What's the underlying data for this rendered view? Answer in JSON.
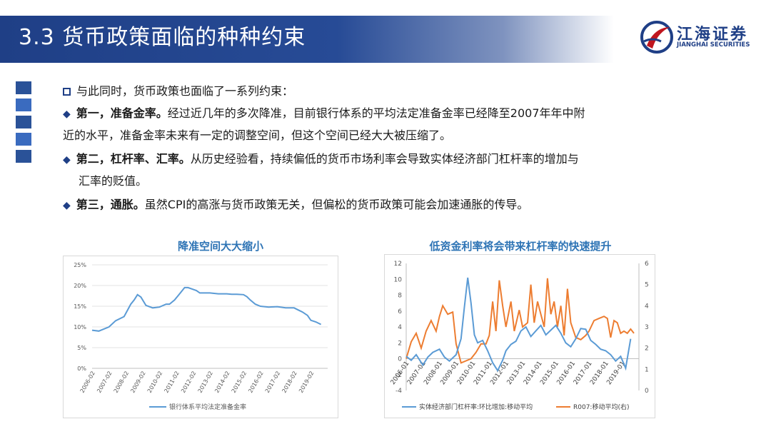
{
  "page": {
    "title": "3.3 货币政策面临的种种约束"
  },
  "logo": {
    "name_cn": "江海证券",
    "name_en": "JIANGHAI SECURITIES"
  },
  "content": {
    "intro": "与此同时，货币政策也面临了一系列约束：",
    "items": [
      {
        "lead": "第一，准备金率。",
        "line1": "经过近几年的多次降准，目前银行体系的平均法定准备金率已经降至2007年年中附",
        "line2": "近的水平，准备金率未来有一定的调整空间，但这个空间已经大大被压缩了。"
      },
      {
        "lead": "第二，杠杆率、汇率。",
        "line1": "从历史经验看，持续偏低的货币市场利率会导致实体经济部门杠杆率的增加与",
        "line2": "汇率的贬值。"
      },
      {
        "lead": "第三，通胀。",
        "line1": "虽然CPI的高涨与货币政策无关，但偏松的货币政策可能会加速通胀的传导。"
      }
    ]
  },
  "chart_data": [
    {
      "type": "line",
      "title": "降准空间大大缩小",
      "ylim": [
        0,
        25
      ],
      "y_ticks": [
        "0%",
        "5%",
        "10%",
        "15%",
        "20%",
        "25%"
      ],
      "x_ticks": [
        "2006-02",
        "2007-02",
        "2008-02",
        "2009-02",
        "2010-02",
        "2011-02",
        "2012-02",
        "2013-02",
        "2014-02",
        "2015-02",
        "2016-02",
        "2017-02",
        "2018-02",
        "2019-02"
      ],
      "grid": true,
      "legend": "bottom",
      "series": [
        {
          "name": "银行体系平均法定准备金率",
          "color": "#5b9bd5",
          "x": [
            2006.0,
            2006.4,
            2007.0,
            2007.4,
            2007.9,
            2008.3,
            2008.5,
            2008.7,
            2008.9,
            2009.2,
            2009.6,
            2010.0,
            2010.4,
            2010.6,
            2010.9,
            2011.2,
            2011.5,
            2011.7,
            2011.9,
            2012.2,
            2012.4,
            2013.0,
            2013.5,
            2014.0,
            2014.3,
            2014.6,
            2015.0,
            2015.2,
            2015.4,
            2015.7,
            2016.0,
            2016.5,
            2017.0,
            2017.5,
            2018.0,
            2018.3,
            2018.5,
            2018.8,
            2019.0,
            2019.3,
            2019.6
          ],
          "values": [
            9.2,
            9.0,
            10.0,
            11.5,
            12.5,
            15.5,
            16.5,
            17.8,
            17.2,
            15.2,
            14.6,
            14.8,
            15.5,
            15.5,
            16.5,
            18.0,
            19.5,
            19.5,
            19.2,
            18.8,
            18.2,
            18.2,
            18.0,
            18.0,
            17.9,
            17.9,
            17.8,
            17.3,
            16.5,
            15.5,
            15.0,
            14.8,
            14.9,
            14.6,
            14.6,
            14.0,
            13.6,
            12.8,
            11.6,
            11.2,
            10.6
          ]
        }
      ]
    },
    {
      "type": "line",
      "title": "低资金利率将会带来杠杆率的快速提升",
      "ylim": [
        -4,
        12
      ],
      "y2lim": [
        0,
        6
      ],
      "y_ticks": [
        "-4",
        "-2",
        "0",
        "2",
        "4",
        "6",
        "8",
        "10",
        "12"
      ],
      "y2_ticks": [
        "0",
        "1",
        "2",
        "3",
        "4",
        "5",
        "6"
      ],
      "x_ticks": [
        "2006-01",
        "2007-01",
        "2008-01",
        "2009-01",
        "2010-01",
        "2011-01",
        "2012-01",
        "2013-01",
        "2014-01",
        "2015-01",
        "2016-01",
        "2017-01",
        "2018-01",
        "2019-01"
      ],
      "grid": false,
      "legend": "bottom",
      "series": [
        {
          "name": "实体经济部门杠杆率:环比增加:移动平均",
          "color": "#5b9bd5",
          "axis": "left",
          "x": [
            2006.0,
            2006.3,
            2006.6,
            2007.0,
            2007.3,
            2007.6,
            2008.0,
            2008.3,
            2008.6,
            2009.0,
            2009.3,
            2009.5,
            2009.7,
            2009.9,
            2010.1,
            2010.3,
            2010.6,
            2010.9,
            2011.2,
            2011.5,
            2011.8,
            2012.0,
            2012.3,
            2012.6,
            2012.9,
            2013.2,
            2013.5,
            2013.8,
            2014.1,
            2014.4,
            2014.7,
            2015.0,
            2015.3,
            2015.6,
            2015.9,
            2016.2,
            2016.5,
            2016.8,
            2017.1,
            2017.4,
            2017.7,
            2018.0,
            2018.3,
            2018.6,
            2018.9,
            2019.2,
            2019.5
          ],
          "values": [
            0.3,
            -0.2,
            0.5,
            -0.8,
            0.2,
            0.8,
            1.2,
            0.2,
            -0.3,
            0.5,
            2.5,
            6.5,
            10.2,
            7.0,
            3.0,
            2.0,
            2.3,
            1.0,
            -0.5,
            -1.5,
            -0.2,
            1.0,
            1.8,
            2.2,
            3.5,
            4.0,
            2.8,
            3.5,
            4.2,
            3.0,
            3.6,
            4.2,
            3.2,
            2.0,
            1.5,
            2.5,
            3.8,
            3.7,
            2.3,
            1.8,
            1.2,
            1.0,
            0.5,
            -0.3,
            0.3,
            -1.2,
            2.5
          ]
        },
        {
          "name": "R007:移动平均(右)",
          "color": "#ed7d31",
          "axis": "right",
          "x": [
            2006.0,
            2006.3,
            2006.6,
            2006.9,
            2007.2,
            2007.5,
            2007.8,
            2008.0,
            2008.2,
            2008.5,
            2008.8,
            2009.0,
            2009.3,
            2009.6,
            2009.9,
            2010.2,
            2010.5,
            2010.8,
            2011.0,
            2011.2,
            2011.4,
            2011.6,
            2011.8,
            2012.0,
            2012.3,
            2012.5,
            2012.8,
            2013.0,
            2013.3,
            2013.5,
            2013.7,
            2013.9,
            2014.1,
            2014.3,
            2014.5,
            2014.7,
            2014.9,
            2015.1,
            2015.3,
            2015.5,
            2015.7,
            2015.9,
            2016.2,
            2016.5,
            2016.8,
            2017.0,
            2017.3,
            2017.6,
            2017.9,
            2018.1,
            2018.3,
            2018.5,
            2018.7,
            2018.9,
            2019.1,
            2019.3,
            2019.5,
            2019.7
          ],
          "values": [
            1.5,
            2.3,
            2.7,
            2.0,
            2.8,
            3.3,
            2.8,
            3.5,
            4.0,
            3.6,
            3.7,
            2.2,
            1.3,
            1.4,
            1.5,
            1.8,
            2.2,
            2.2,
            2.6,
            4.2,
            2.8,
            5.2,
            4.0,
            3.0,
            4.2,
            2.8,
            3.8,
            3.0,
            3.2,
            5.0,
            3.2,
            4.2,
            3.6,
            3.0,
            5.3,
            3.6,
            4.2,
            3.0,
            4.0,
            2.6,
            4.8,
            3.2,
            2.5,
            2.4,
            2.6,
            2.8,
            3.3,
            3.4,
            3.5,
            3.4,
            2.5,
            3.3,
            3.2,
            2.7,
            2.8,
            2.7,
            2.9,
            2.7
          ]
        }
      ]
    }
  ]
}
